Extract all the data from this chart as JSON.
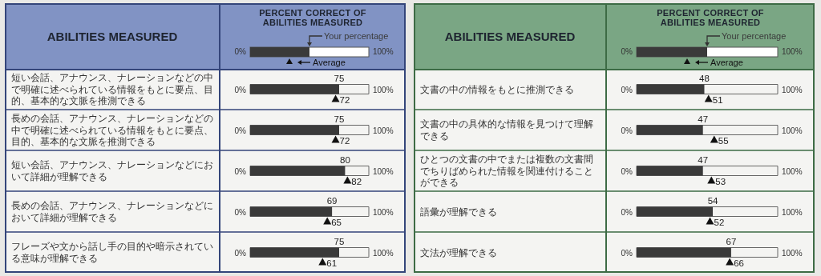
{
  "chart_data": [
    {
      "type": "bar",
      "orientation": "horizontal",
      "title": "PERCENT CORRECT OF ABILITIES MEASURED",
      "ylabel": "ABILITIES MEASURED",
      "categories": [
        "短い会話、アナウンス、ナレーションなどの中で明確に述べられている情報をもとに要点、目的、基本的な文脈を推測できる",
        "長めの会話、アナウンス、ナレーションなどの中で明確に述べられている情報をもとに要点、目的、基本的な文脈を推測できる",
        "短い会話、アナウンス、ナレーションなどにおいて詳細が理解できる",
        "長めの会話、アナウンス、ナレーションなどにおいて詳細が理解できる",
        "フレーズや文から話し手の目的や暗示されている意味が理解できる"
      ],
      "series": [
        {
          "name": "Your percentage",
          "color": "#3a3a3a",
          "values": [
            75,
            75,
            80,
            69,
            75
          ]
        },
        {
          "name": "Average",
          "type": "scatter",
          "marker": "triangle",
          "color": "#111111",
          "values": [
            72,
            72,
            82,
            65,
            61
          ]
        }
      ],
      "xlim": [
        0,
        100
      ],
      "annotations": [
        "0%",
        "100%"
      ],
      "data_labels": true,
      "legend": "top"
    },
    {
      "type": "bar",
      "orientation": "horizontal",
      "title": "PERCENT CORRECT OF ABILITIES MEASURED",
      "ylabel": "ABILITIES MEASURED",
      "categories": [
        "文書の中の情報をもとに推測できる",
        "文書の中の具体的な情報を見つけて理解できる",
        "ひとつの文書の中でまたは複数の文書間でちりばめられた情報を関連付けることができる",
        "語彙が理解できる",
        "文法が理解できる"
      ],
      "series": [
        {
          "name": "Your percentage",
          "color": "#3a3a3a",
          "values": [
            48,
            47,
            47,
            54,
            67
          ]
        },
        {
          "name": "Average",
          "type": "scatter",
          "marker": "triangle",
          "color": "#111111",
          "values": [
            51,
            55,
            53,
            52,
            66
          ]
        }
      ],
      "xlim": [
        0,
        100
      ],
      "annotations": [
        "0%",
        "100%"
      ],
      "data_labels": true,
      "legend": "top"
    }
  ]
}
